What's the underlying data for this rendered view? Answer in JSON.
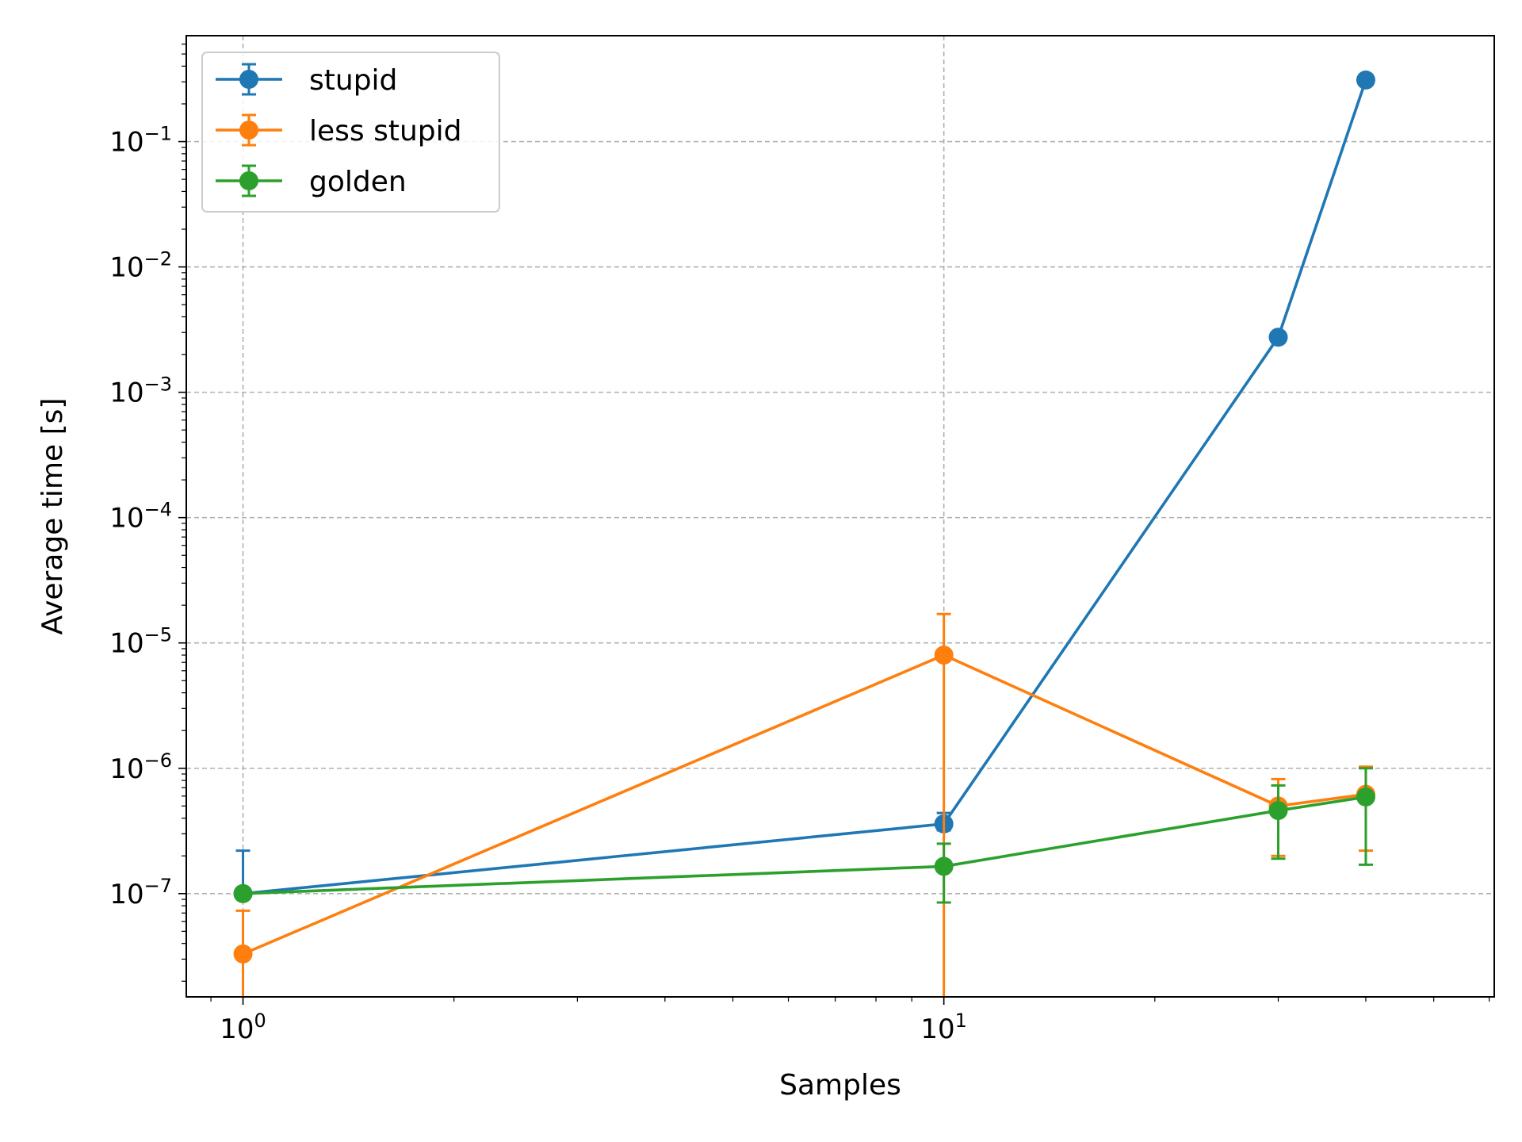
{
  "chart_data": {
    "type": "line",
    "title": "",
    "xlabel": "Samples",
    "ylabel": "Average time [s]",
    "xscale": "log",
    "yscale": "log",
    "xlim": [
      0.83,
      61
    ],
    "ylim": [
      1.5e-08,
      0.7
    ],
    "grid": true,
    "legend_position": "upper-left",
    "x_ticks": [
      {
        "value": 1,
        "base": "10",
        "exp": "0"
      },
      {
        "value": 10,
        "base": "10",
        "exp": "1"
      }
    ],
    "y_ticks": [
      {
        "value": 1e-07,
        "base": "10",
        "exp": "−7"
      },
      {
        "value": 1e-06,
        "base": "10",
        "exp": "−6"
      },
      {
        "value": 1e-05,
        "base": "10",
        "exp": "−5"
      },
      {
        "value": 0.0001,
        "base": "10",
        "exp": "−4"
      },
      {
        "value": 0.001,
        "base": "10",
        "exp": "−3"
      },
      {
        "value": 0.01,
        "base": "10",
        "exp": "−2"
      },
      {
        "value": 0.1,
        "base": "10",
        "exp": "−1"
      }
    ],
    "series": [
      {
        "name": "stupid",
        "color": "#1f77b4",
        "x": [
          1,
          10,
          30,
          40
        ],
        "y": [
          1e-07,
          3.6e-07,
          0.00275,
          0.31
        ],
        "err_low": [
          1e-07,
          3.2e-07,
          null,
          null
        ],
        "err_high": [
          2.2e-07,
          4.4e-07,
          null,
          null
        ]
      },
      {
        "name": "less stupid",
        "color": "#ff7f0e",
        "x": [
          1,
          10,
          30,
          40
        ],
        "y": [
          3.3e-08,
          8e-06,
          5e-07,
          6.2e-07
        ],
        "err_low": [
          1e-08,
          1e-09,
          2e-07,
          2.2e-07
        ],
        "err_high": [
          7.3e-08,
          1.7e-05,
          8.2e-07,
          1.03e-06
        ]
      },
      {
        "name": "golden",
        "color": "#2ca02c",
        "x": [
          1,
          10,
          30,
          40
        ],
        "y": [
          1e-07,
          1.65e-07,
          4.6e-07,
          5.9e-07
        ],
        "err_low": [
          1e-07,
          8.5e-08,
          1.9e-07,
          1.7e-07
        ],
        "err_high": [
          1e-07,
          2.5e-07,
          7.3e-07,
          1e-06
        ]
      }
    ]
  }
}
